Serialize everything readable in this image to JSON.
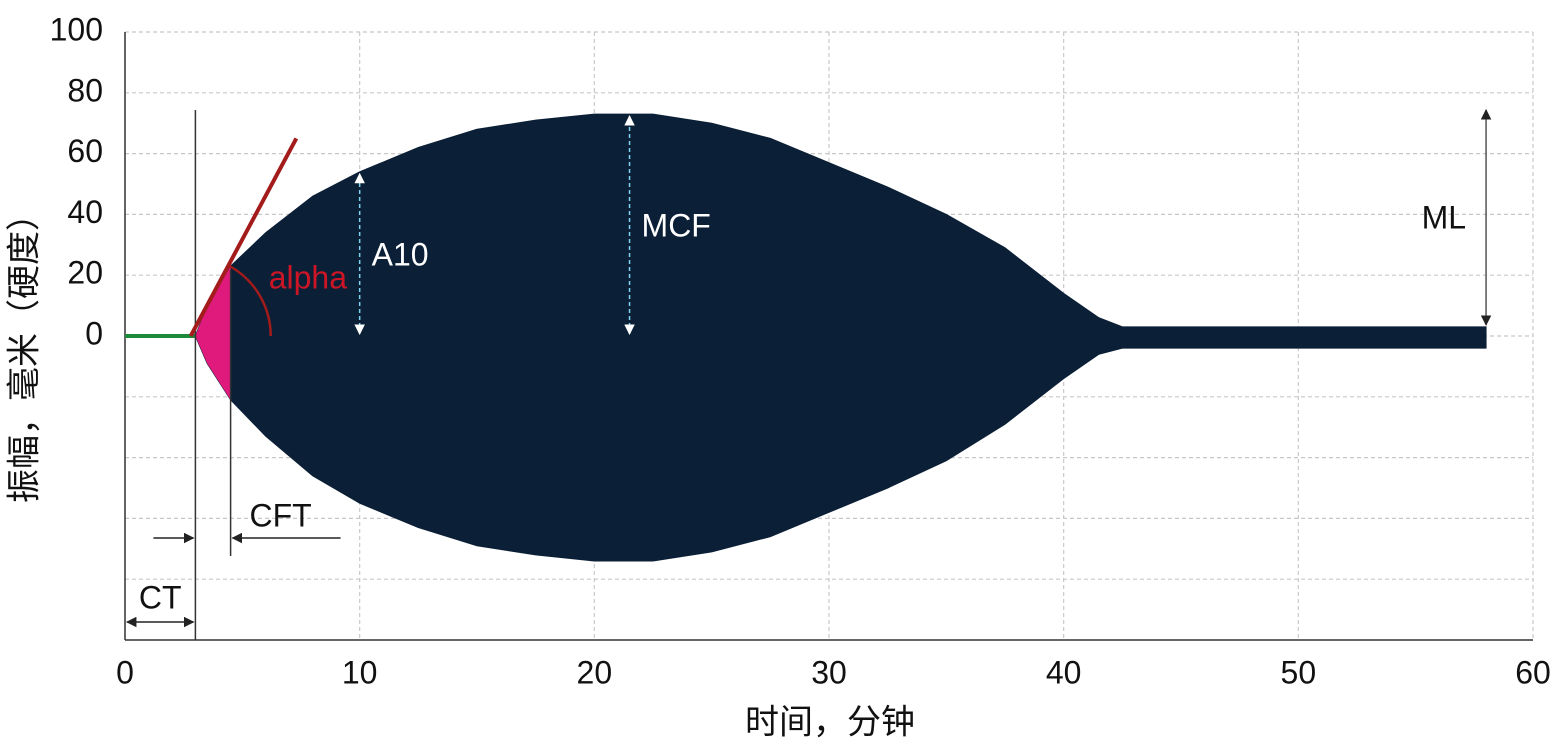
{
  "chart_data": {
    "type": "area",
    "x_label": "时间，分钟",
    "y_label": "振幅，毫米（硬度）",
    "xlim": [
      0,
      60
    ],
    "xticks": [
      0,
      10,
      20,
      30,
      40,
      50,
      60
    ],
    "ylim": [
      -100,
      100
    ],
    "yticks": [
      0,
      20,
      40,
      60,
      80,
      100
    ],
    "unlabeled_grid": [
      -20,
      -40,
      -60,
      -80
    ],
    "grid": true,
    "x": [
      3,
      3.5,
      4.5,
      6,
      8,
      10,
      12.5,
      15,
      17.5,
      20,
      22.5,
      25,
      27.5,
      30,
      32.5,
      35,
      37.5,
      40,
      41.5,
      42.5,
      50,
      58
    ],
    "series": [
      {
        "color": "#0b1f36",
        "values": [
          0,
          10,
          23,
          34,
          46,
          54,
          62,
          68,
          71,
          73,
          73,
          70,
          65,
          57,
          49,
          40,
          29,
          14,
          6,
          3,
          3,
          3
        ]
      },
      {
        "color": "#0b1f36",
        "values": [
          0,
          -9,
          -21,
          -33,
          -46,
          -55,
          -63,
          -69,
          -72,
          -74,
          -74,
          -71,
          -66,
          -58,
          -50,
          -41,
          -29,
          -14,
          -6,
          -4,
          -4,
          -4
        ]
      }
    ],
    "baseline": {
      "color": "#1e8a3c",
      "x": [
        0,
        3
      ],
      "values": [
        0,
        0
      ]
    },
    "annotations": [
      {
        "label": "CT",
        "x": [
          0,
          3
        ]
      },
      {
        "label": "CFT",
        "x": [
          3,
          4.5
        ],
        "color": "#e0197d"
      },
      {
        "label": "A10",
        "x": 10,
        "value": 54
      },
      {
        "label": "MCF",
        "x": 21.5,
        "value": 73
      },
      {
        "label": "ML",
        "x": 58,
        "values": [
          3,
          75
        ]
      },
      {
        "label": "alpha",
        "color": "#cc1626",
        "line_color": "#a31b1b",
        "x": [
          2.8,
          7.3
        ],
        "values": [
          0,
          65
        ]
      }
    ]
  }
}
